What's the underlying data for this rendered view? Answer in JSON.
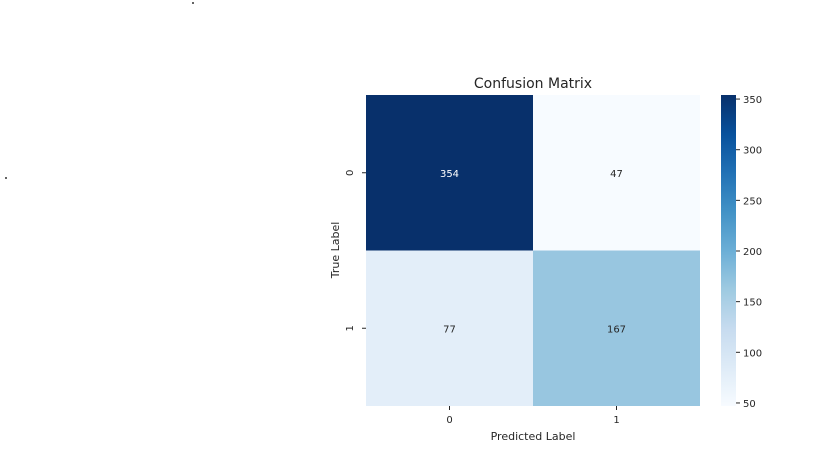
{
  "chart_data": {
    "type": "heatmap",
    "title": "Confusion Matrix",
    "xlabel": "Predicted Label",
    "ylabel": "True Label",
    "x_categories": [
      "0",
      "1"
    ],
    "y_categories": [
      "0",
      "1"
    ],
    "values": [
      [
        354,
        47
      ],
      [
        77,
        167
      ]
    ],
    "colormap": "Blues",
    "colorbar": {
      "min": 47,
      "max": 354,
      "ticks": [
        50,
        100,
        150,
        200,
        250,
        300,
        350
      ]
    },
    "grid": false
  }
}
